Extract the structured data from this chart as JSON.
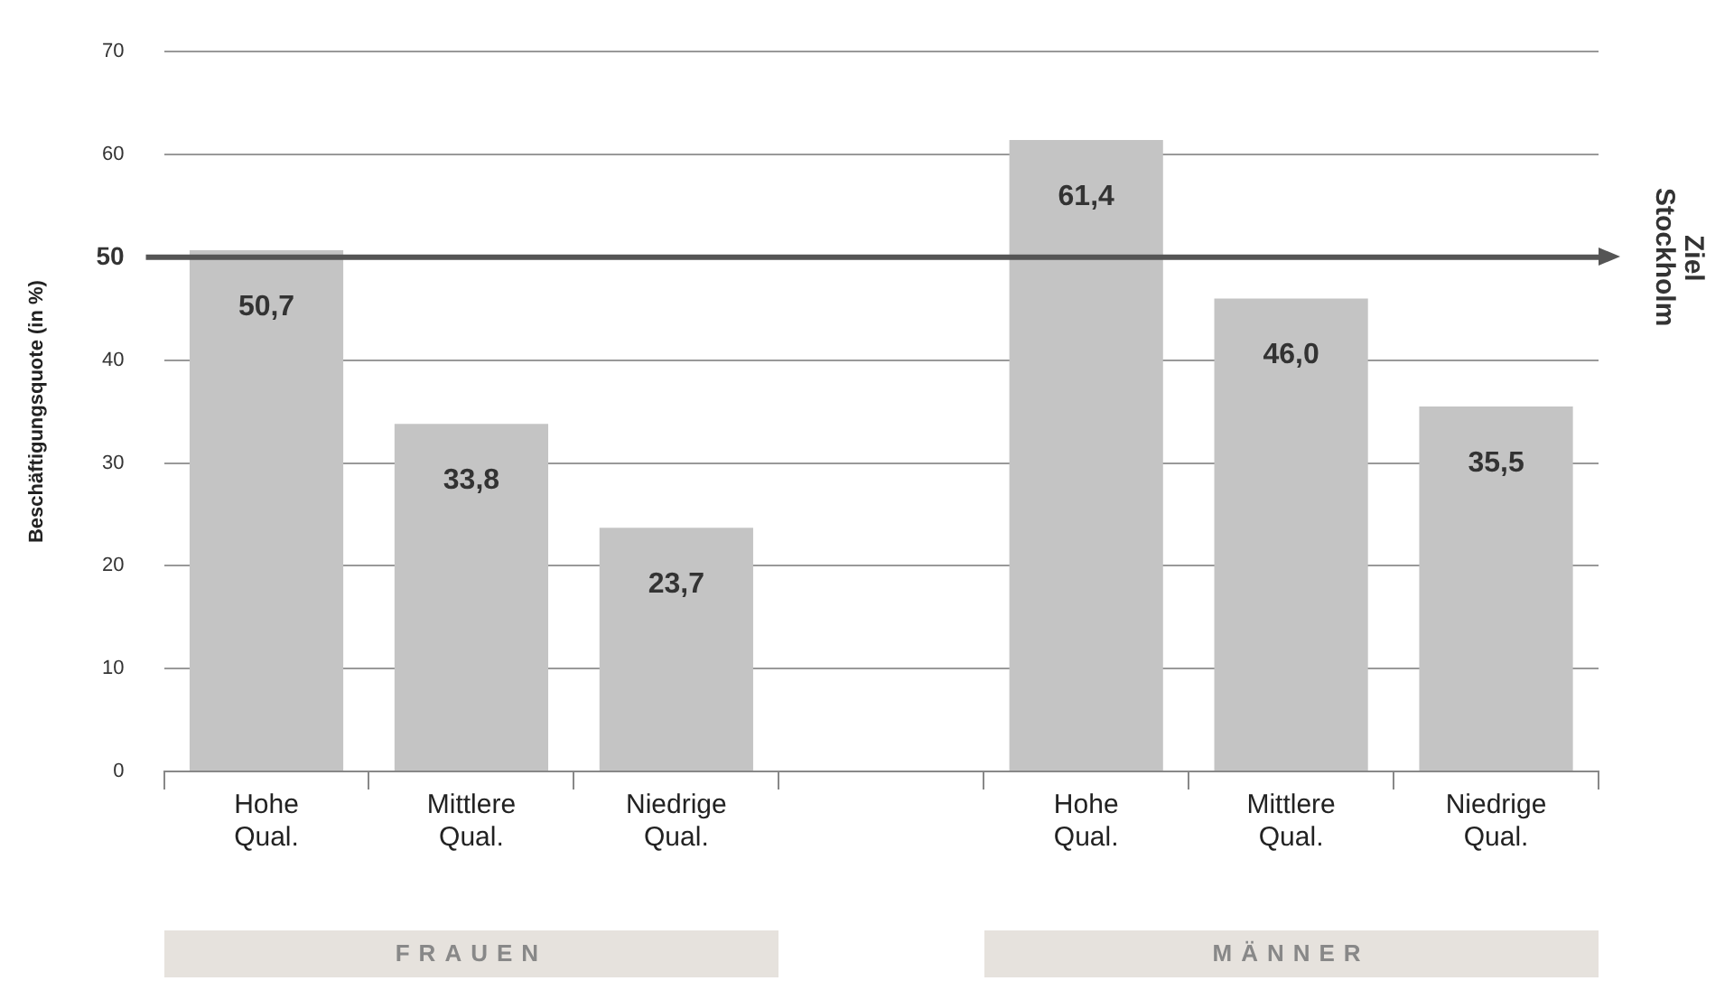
{
  "chart_data": {
    "type": "bar",
    "ylabel": "Beschäftigungsquote (in %)",
    "categories": [
      "Hohe Qual.",
      "Mittlere Qual.",
      "Niedrige Qual.",
      null,
      "Hohe Qual.",
      "Mittlere Qual.",
      "Niedrige Qual."
    ],
    "values": [
      50.7,
      33.8,
      23.7,
      null,
      61.4,
      46.0,
      35.5
    ],
    "value_labels": [
      "50,7",
      "33,8",
      "23,7",
      null,
      "61,4",
      "46,0",
      "35,5"
    ],
    "color": "#c4c4c4",
    "ylim": [
      0,
      70
    ],
    "yticks": [
      0,
      10,
      20,
      30,
      40,
      50,
      60,
      70
    ],
    "grid": "y",
    "ref_lines": [
      {
        "axis": "y",
        "value": 50,
        "label": "Ziel Stockholm",
        "color": "#555555"
      }
    ],
    "annotations": [
      "FRAUEN",
      "MÄNNER"
    ],
    "legend": false
  }
}
